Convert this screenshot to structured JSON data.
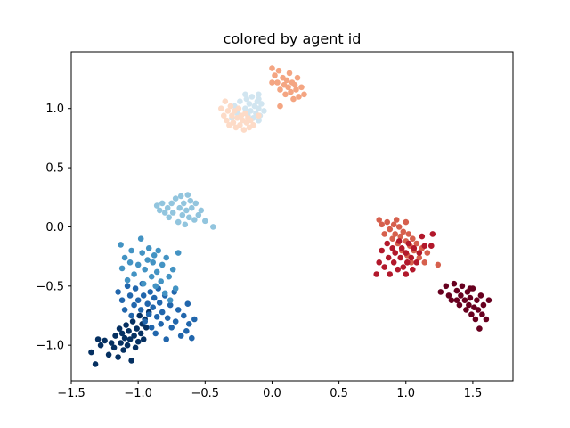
{
  "chart_data": {
    "type": "scatter",
    "title": "colored by agent id",
    "xlabel": "",
    "ylabel": "",
    "xlim": [
      -1.5,
      1.8
    ],
    "ylim": [
      -1.3,
      1.48
    ],
    "xticks": [
      -1.5,
      -1.0,
      -0.5,
      0.0,
      0.5,
      1.0,
      1.5
    ],
    "xtick_labels": [
      "−1.5",
      "−1.0",
      "−0.5",
      "0.0",
      "0.5",
      "1.0",
      "1.5"
    ],
    "yticks": [
      -1.0,
      -0.5,
      0.0,
      0.5,
      1.0
    ],
    "ytick_labels": [
      "−1.0",
      "−0.5",
      "0.0",
      "0.5",
      "1.0"
    ],
    "grid": false,
    "legend": "none",
    "colormap": "RdBu (reversed-looking)",
    "series": [
      {
        "color": "#053061",
        "points": [
          [
            -1.35,
            -1.06
          ],
          [
            -1.32,
            -1.16
          ],
          [
            -1.3,
            -0.95
          ],
          [
            -1.28,
            -1.0
          ],
          [
            -1.25,
            -0.96
          ],
          [
            -1.22,
            -1.08
          ],
          [
            -1.2,
            -0.98
          ],
          [
            -1.18,
            -1.02
          ],
          [
            -1.17,
            -0.92
          ],
          [
            -1.15,
            -1.1
          ],
          [
            -1.14,
            -0.86
          ],
          [
            -1.13,
            -0.98
          ],
          [
            -1.12,
            -0.9
          ],
          [
            -1.11,
            -1.04
          ],
          [
            -1.1,
            -0.94
          ],
          [
            -1.09,
            -0.83
          ],
          [
            -1.08,
            -1.0
          ],
          [
            -1.07,
            -0.88
          ],
          [
            -1.06,
            -0.95
          ],
          [
            -1.05,
            -1.13
          ],
          [
            -1.04,
            -0.8
          ],
          [
            -1.03,
            -0.92
          ],
          [
            -1.02,
            -1.02
          ],
          [
            -1.01,
            -0.86
          ],
          [
            -1.0,
            -0.97
          ],
          [
            -0.99,
            -0.75
          ],
          [
            -0.98,
            -0.9
          ],
          [
            -0.97,
            -0.82
          ],
          [
            -0.96,
            -0.95
          ],
          [
            -0.95,
            -0.78
          ],
          [
            -0.94,
            -0.85
          ],
          [
            -0.92,
            -0.72
          ]
        ]
      },
      {
        "color": "#2166ac",
        "points": [
          [
            -1.15,
            -0.55
          ],
          [
            -1.12,
            -0.62
          ],
          [
            -1.1,
            -0.7
          ],
          [
            -1.08,
            -0.5
          ],
          [
            -1.06,
            -0.58
          ],
          [
            -1.05,
            -0.75
          ],
          [
            -1.03,
            -0.66
          ],
          [
            -1.02,
            -0.52
          ],
          [
            -1.0,
            -0.62
          ],
          [
            -0.98,
            -0.7
          ],
          [
            -0.97,
            -0.48
          ],
          [
            -0.96,
            -0.58
          ],
          [
            -0.95,
            -0.8
          ],
          [
            -0.93,
            -0.65
          ],
          [
            -0.92,
            -0.74
          ],
          [
            -0.91,
            -0.55
          ],
          [
            -0.9,
            -0.85
          ],
          [
            -0.89,
            -0.68
          ],
          [
            -0.88,
            -0.6
          ],
          [
            -0.87,
            -0.9
          ],
          [
            -0.86,
            -0.76
          ],
          [
            -0.85,
            -0.52
          ],
          [
            -0.84,
            -0.64
          ],
          [
            -0.83,
            -0.82
          ],
          [
            -0.82,
            -0.72
          ],
          [
            -0.8,
            -0.58
          ],
          [
            -0.79,
            -0.95
          ],
          [
            -0.78,
            -0.77
          ],
          [
            -0.76,
            -0.66
          ],
          [
            -0.75,
            -0.85
          ],
          [
            -0.73,
            -0.55
          ],
          [
            -0.72,
            -0.8
          ],
          [
            -0.7,
            -0.7
          ],
          [
            -0.68,
            -0.92
          ],
          [
            -0.66,
            -0.75
          ],
          [
            -0.64,
            -0.88
          ],
          [
            -0.63,
            -0.65
          ],
          [
            -0.62,
            -0.82
          ],
          [
            -0.6,
            -0.94
          ],
          [
            -0.58,
            -0.78
          ]
        ]
      },
      {
        "color": "#4393c3",
        "points": [
          [
            -1.13,
            -0.15
          ],
          [
            -1.12,
            -0.35
          ],
          [
            -1.1,
            -0.26
          ],
          [
            -1.08,
            -0.45
          ],
          [
            -1.06,
            -0.3
          ],
          [
            -1.05,
            -0.2
          ],
          [
            -1.03,
            -0.4
          ],
          [
            -1.0,
            -0.32
          ],
          [
            -0.98,
            -0.1
          ],
          [
            -0.97,
            -0.22
          ],
          [
            -0.96,
            -0.48
          ],
          [
            -0.95,
            -0.36
          ],
          [
            -0.93,
            -0.28
          ],
          [
            -0.92,
            -0.18
          ],
          [
            -0.9,
            -0.42
          ],
          [
            -0.89,
            -0.3
          ],
          [
            -0.88,
            -0.24
          ],
          [
            -0.87,
            -0.5
          ],
          [
            -0.86,
            -0.38
          ],
          [
            -0.85,
            -0.2
          ],
          [
            -0.83,
            -0.46
          ],
          [
            -0.82,
            -0.32
          ],
          [
            -0.8,
            -0.56
          ],
          [
            -0.79,
            -0.26
          ],
          [
            -0.77,
            -0.42
          ],
          [
            -0.76,
            -0.62
          ],
          [
            -0.74,
            -0.36
          ],
          [
            -0.72,
            -0.52
          ],
          [
            -0.7,
            -0.22
          ]
        ]
      },
      {
        "color": "#92c5de",
        "points": [
          [
            -0.86,
            0.18
          ],
          [
            -0.84,
            0.14
          ],
          [
            -0.82,
            0.2
          ],
          [
            -0.8,
            0.12
          ],
          [
            -0.78,
            0.16
          ],
          [
            -0.77,
            0.08
          ],
          [
            -0.75,
            0.2
          ],
          [
            -0.74,
            0.12
          ],
          [
            -0.72,
            0.24
          ],
          [
            -0.7,
            0.04
          ],
          [
            -0.69,
            0.16
          ],
          [
            -0.68,
            0.26
          ],
          [
            -0.67,
            0.1
          ],
          [
            -0.66,
            0.2
          ],
          [
            -0.65,
            0.02
          ],
          [
            -0.64,
            0.14
          ],
          [
            -0.63,
            0.27
          ],
          [
            -0.62,
            0.08
          ],
          [
            -0.61,
            0.22
          ],
          [
            -0.6,
            0.16
          ],
          [
            -0.58,
            0.06
          ],
          [
            -0.57,
            0.2
          ],
          [
            -0.55,
            0.1
          ],
          [
            -0.53,
            0.14
          ],
          [
            -0.5,
            0.05
          ],
          [
            -0.44,
            0.0
          ]
        ]
      },
      {
        "color": "#d1e5f0",
        "points": [
          [
            -0.3,
            0.92
          ],
          [
            -0.28,
            1.02
          ],
          [
            -0.26,
            0.96
          ],
          [
            -0.24,
            1.06
          ],
          [
            -0.22,
            0.9
          ],
          [
            -0.2,
            1.0
          ],
          [
            -0.19,
            1.08
          ],
          [
            -0.18,
            0.94
          ],
          [
            -0.17,
            1.04
          ],
          [
            -0.16,
            0.98
          ],
          [
            -0.15,
            1.1
          ],
          [
            -0.14,
            0.92
          ],
          [
            -0.13,
            1.02
          ],
          [
            -0.12,
            0.96
          ],
          [
            -0.11,
            1.06
          ],
          [
            -0.1,
            1.0
          ],
          [
            -0.09,
            0.94
          ],
          [
            -0.08,
            1.04
          ],
          [
            -0.06,
            0.98
          ],
          [
            -0.1,
            1.12
          ],
          [
            -0.2,
            1.12
          ],
          [
            -0.1,
            0.9
          ],
          [
            -0.1,
            1.08
          ],
          [
            -0.1,
            0.9
          ],
          [
            -0.1,
            0.9
          ],
          [
            -0.1,
            0.9
          ],
          [
            -0.1,
            0.9
          ],
          [
            -0.1,
            0.9
          ]
        ]
      },
      {
        "color": "#fddbc7",
        "points": [
          [
            -0.38,
            1.0
          ],
          [
            -0.36,
            0.94
          ],
          [
            -0.35,
            1.06
          ],
          [
            -0.34,
            0.9
          ],
          [
            -0.33,
            0.98
          ],
          [
            -0.32,
            0.86
          ],
          [
            -0.31,
            1.02
          ],
          [
            -0.3,
            0.94
          ],
          [
            -0.29,
            0.88
          ],
          [
            -0.28,
            0.98
          ],
          [
            -0.27,
            0.84
          ],
          [
            -0.26,
            0.92
          ],
          [
            -0.25,
            1.0
          ],
          [
            -0.24,
            0.86
          ],
          [
            -0.23,
            0.94
          ],
          [
            -0.22,
            0.9
          ],
          [
            -0.21,
            0.82
          ],
          [
            -0.2,
            0.96
          ],
          [
            -0.19,
            0.88
          ],
          [
            -0.18,
            0.92
          ],
          [
            -0.17,
            0.84
          ],
          [
            -0.16,
            0.9
          ],
          [
            -0.14,
            0.86
          ],
          [
            -0.1,
            0.94
          ]
        ]
      },
      {
        "color": "#f4a582",
        "points": [
          [
            0.0,
            1.34
          ],
          [
            0.02,
            1.28
          ],
          [
            0.04,
            1.22
          ],
          [
            0.05,
            1.32
          ],
          [
            0.06,
            1.16
          ],
          [
            0.08,
            1.26
          ],
          [
            0.09,
            1.2
          ],
          [
            0.1,
            1.12
          ],
          [
            0.11,
            1.24
          ],
          [
            0.12,
            1.18
          ],
          [
            0.13,
            1.3
          ],
          [
            0.14,
            1.14
          ],
          [
            0.15,
            1.22
          ],
          [
            0.16,
            1.08
          ],
          [
            0.17,
            1.2
          ],
          [
            0.18,
            1.16
          ],
          [
            0.19,
            1.26
          ],
          [
            0.2,
            1.1
          ],
          [
            0.22,
            1.18
          ],
          [
            0.24,
            1.12
          ],
          [
            0.06,
            1.02
          ],
          [
            0.0,
            1.22
          ]
        ]
      },
      {
        "color": "#d6604d",
        "points": [
          [
            0.8,
            0.06
          ],
          [
            0.82,
            0.02
          ],
          [
            0.84,
            -0.06
          ],
          [
            0.86,
            0.04
          ],
          [
            0.88,
            -0.02
          ],
          [
            0.9,
            -0.1
          ],
          [
            0.91,
            0.02
          ],
          [
            0.92,
            -0.06
          ],
          [
            0.94,
            -0.14
          ],
          [
            0.95,
            0.0
          ],
          [
            0.96,
            -0.08
          ],
          [
            0.97,
            -0.2
          ],
          [
            0.98,
            -0.04
          ],
          [
            1.0,
            -0.12
          ],
          [
            1.01,
            -0.24
          ],
          [
            1.02,
            -0.06
          ],
          [
            1.03,
            -0.16
          ],
          [
            1.04,
            -0.3
          ],
          [
            1.05,
            -0.1
          ],
          [
            1.06,
            -0.2
          ],
          [
            1.08,
            -0.14
          ],
          [
            1.1,
            -0.26
          ],
          [
            1.12,
            -0.18
          ],
          [
            1.14,
            -0.3
          ],
          [
            1.16,
            -0.22
          ],
          [
            1.24,
            -0.32
          ],
          [
            1.0,
            0.04
          ],
          [
            0.93,
            0.06
          ]
        ]
      },
      {
        "color": "#b2182b",
        "points": [
          [
            0.78,
            -0.4
          ],
          [
            0.8,
            -0.3
          ],
          [
            0.82,
            -0.2
          ],
          [
            0.84,
            -0.34
          ],
          [
            0.86,
            -0.14
          ],
          [
            0.87,
            -0.26
          ],
          [
            0.88,
            -0.4
          ],
          [
            0.9,
            -0.18
          ],
          [
            0.91,
            -0.3
          ],
          [
            0.92,
            -0.22
          ],
          [
            0.94,
            -0.36
          ],
          [
            0.95,
            -0.12
          ],
          [
            0.96,
            -0.26
          ],
          [
            0.97,
            -0.18
          ],
          [
            0.98,
            -0.34
          ],
          [
            1.0,
            -0.22
          ],
          [
            1.01,
            -0.3
          ],
          [
            1.02,
            -0.14
          ],
          [
            1.04,
            -0.26
          ],
          [
            1.05,
            -0.36
          ],
          [
            1.06,
            -0.18
          ],
          [
            1.08,
            -0.3
          ],
          [
            1.1,
            -0.22
          ],
          [
            1.12,
            -0.08
          ],
          [
            1.14,
            -0.16
          ],
          [
            1.19,
            -0.16
          ],
          [
            1.2,
            -0.06
          ],
          [
            1.0,
            -0.4
          ]
        ]
      },
      {
        "color": "#67001f",
        "points": [
          [
            1.26,
            -0.55
          ],
          [
            1.3,
            -0.5
          ],
          [
            1.32,
            -0.58
          ],
          [
            1.34,
            -0.62
          ],
          [
            1.36,
            -0.48
          ],
          [
            1.38,
            -0.54
          ],
          [
            1.4,
            -0.66
          ],
          [
            1.41,
            -0.58
          ],
          [
            1.42,
            -0.5
          ],
          [
            1.44,
            -0.62
          ],
          [
            1.45,
            -0.7
          ],
          [
            1.46,
            -0.55
          ],
          [
            1.47,
            -0.66
          ],
          [
            1.48,
            -0.6
          ],
          [
            1.49,
            -0.74
          ],
          [
            1.5,
            -0.52
          ],
          [
            1.51,
            -0.68
          ],
          [
            1.52,
            -0.78
          ],
          [
            1.53,
            -0.62
          ],
          [
            1.54,
            -0.7
          ],
          [
            1.55,
            -0.86
          ],
          [
            1.56,
            -0.58
          ],
          [
            1.57,
            -0.74
          ],
          [
            1.58,
            -0.66
          ],
          [
            1.6,
            -0.78
          ],
          [
            1.62,
            -0.62
          ],
          [
            1.48,
            -0.52
          ],
          [
            1.38,
            -0.62
          ]
        ]
      }
    ]
  }
}
